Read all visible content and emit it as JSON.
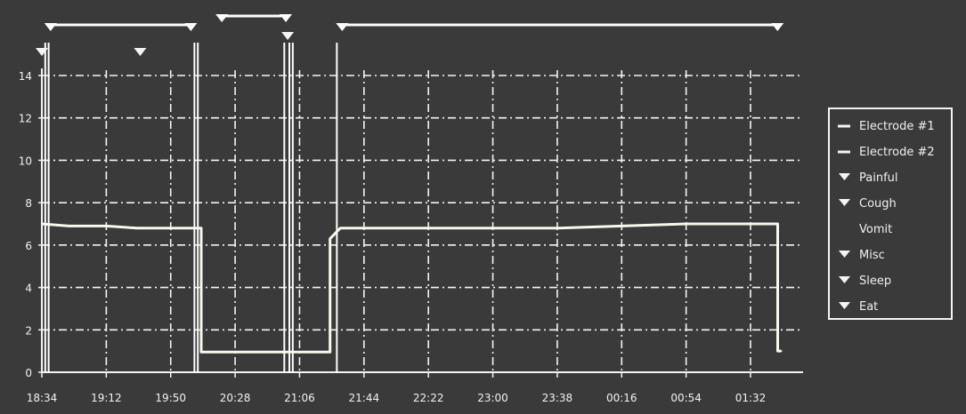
{
  "chart_data": {
    "type": "line",
    "title": "",
    "xlabel": "",
    "ylabel": "",
    "ylim": [
      0,
      14
    ],
    "yticks": [
      "0",
      "2",
      "4",
      "6",
      "8",
      "10",
      "12",
      "14"
    ],
    "xticks": [
      "18:34",
      "19:12",
      "19:50",
      "20:28",
      "21:06",
      "21:44",
      "22:22",
      "23:00",
      "23:38",
      "00:16",
      "00:54",
      "01:32"
    ],
    "grid": true,
    "legend_position": "right",
    "legend": [
      {
        "label": "Electrode #1",
        "marker": "line"
      },
      {
        "label": "Electrode #2",
        "marker": "line"
      },
      {
        "label": "Painful",
        "marker": "triangle"
      },
      {
        "label": "Cough",
        "marker": "triangle"
      },
      {
        "label": "Vomit",
        "marker": "none"
      },
      {
        "label": "Misc",
        "marker": "triangle"
      },
      {
        "label": "Sleep",
        "marker": "triangle"
      },
      {
        "label": "Eat",
        "marker": "triangle"
      }
    ],
    "series": [
      {
        "name": "Electrode #1",
        "x": [
          "18:34",
          "18:50",
          "19:12",
          "19:30",
          "19:50",
          "20:08",
          "20:08",
          "20:28",
          "21:06",
          "21:24",
          "21:24",
          "21:30",
          "21:44",
          "22:22",
          "23:00",
          "23:38",
          "00:16",
          "00:54",
          "01:32",
          "01:48",
          "01:48",
          "01:50"
        ],
        "values": [
          7.0,
          6.9,
          6.9,
          6.8,
          6.8,
          6.8,
          0.95,
          0.95,
          0.95,
          0.95,
          6.3,
          6.8,
          6.8,
          6.8,
          6.8,
          6.8,
          6.9,
          7.0,
          7.0,
          7.0,
          1.0,
          1.0
        ]
      }
    ],
    "event_markers": [
      {
        "event": "Cough",
        "time": "18:34"
      },
      {
        "event": "Cough",
        "time": "19:32"
      },
      {
        "event": "Misc",
        "time": "20:59"
      }
    ],
    "event_periods": [
      {
        "event": "Sleep",
        "start": "18:36",
        "end": "20:04"
      },
      {
        "event": "Eat",
        "start": "20:17",
        "end": "21:00"
      },
      {
        "event": "Sleep",
        "start": "21:28",
        "end": "01:50"
      }
    ],
    "event_lines": [
      "18:36",
      "18:38",
      "20:04",
      "20:06",
      "20:57",
      "21:00",
      "21:02",
      "21:28"
    ]
  }
}
